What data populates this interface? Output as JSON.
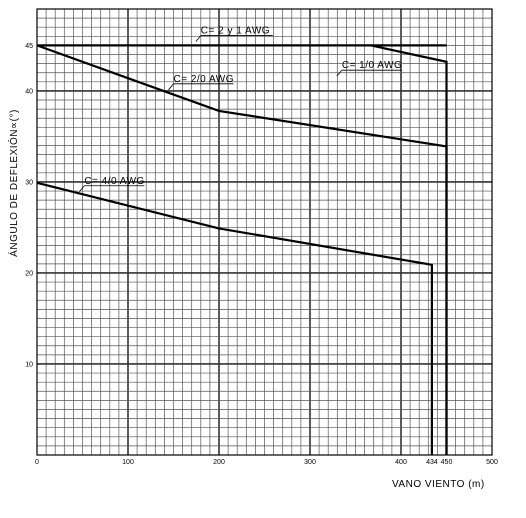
{
  "chart_data": {
    "type": "line",
    "xlabel": "VANO VIENTO (m)",
    "ylabel": "ÁNGULO DE DEFLEXIÓN∝(°)",
    "xlim": [
      0,
      500
    ],
    "ylim": [
      0,
      49
    ],
    "x_ticks": [
      {
        "value": 0,
        "label": "0"
      },
      {
        "value": 100,
        "label": "100"
      },
      {
        "value": 200,
        "label": "200"
      },
      {
        "value": 300,
        "label": "300"
      },
      {
        "value": 400,
        "label": "400"
      },
      {
        "value": 434,
        "label": "434"
      },
      {
        "value": 450,
        "label": "450"
      },
      {
        "value": 500,
        "label": "500"
      }
    ],
    "y_ticks": [
      {
        "value": 10,
        "label": "10"
      },
      {
        "value": 20,
        "label": "20"
      },
      {
        "value": 30,
        "label": "30"
      },
      {
        "value": 40,
        "label": "40"
      },
      {
        "value": 45,
        "label": "45"
      }
    ],
    "grid": true,
    "minor_grid_step": {
      "x": 10,
      "y": 1
    },
    "major_grid": {
      "x": [
        100,
        200,
        300,
        400
      ],
      "y": [
        10,
        20,
        30,
        40
      ]
    },
    "series": [
      {
        "name": "C= 2 y 1 AWG",
        "points": [
          [
            0,
            45
          ],
          [
            367,
            45
          ],
          [
            450,
            45
          ]
        ]
      },
      {
        "name": "C= 1/0 AWG",
        "points": [
          [
            367,
            45
          ],
          [
            450,
            43.2
          ],
          [
            450,
            0
          ]
        ]
      },
      {
        "name": "C= 2/0 AWG",
        "points": [
          [
            0,
            45
          ],
          [
            200,
            37.8
          ],
          [
            450,
            33.9
          ],
          [
            450,
            0
          ]
        ]
      },
      {
        "name": "C= 4/0 AWG",
        "points": [
          [
            0,
            29.9
          ],
          [
            200,
            24.9
          ],
          [
            434,
            20.9
          ],
          [
            434,
            0
          ]
        ]
      }
    ],
    "labels": [
      {
        "series": 0,
        "text": "C= 2 y 1 AWG",
        "at": [
          180,
          46.3
        ]
      },
      {
        "series": 1,
        "text": "C= 1/0 AWG",
        "at": [
          335,
          42.5
        ]
      },
      {
        "series": 2,
        "text": "C= 2/0 AWG",
        "at": [
          150,
          41.0
        ]
      },
      {
        "series": 3,
        "text": "C= 4/0 AWG",
        "at": [
          52,
          29.8
        ]
      }
    ],
    "colors": {
      "grid_minor": "#555555",
      "grid_major": "#333333",
      "curves": "#000000"
    }
  }
}
